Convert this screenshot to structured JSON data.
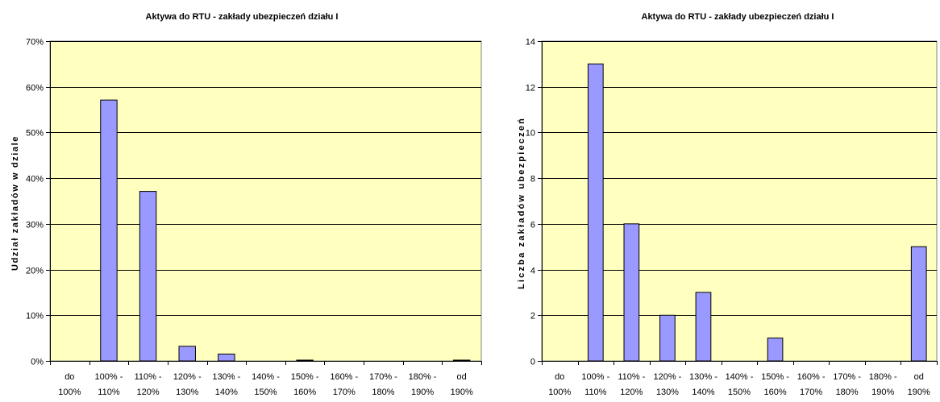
{
  "chart_data": [
    {
      "type": "bar",
      "title": "Aktywa do RTU - zakłady ubezpieczeń działu I",
      "xlabel": "",
      "ylabel": "Udział zakładów w dziale",
      "categories": [
        [
          "do",
          "100%"
        ],
        [
          "100% -",
          "110%"
        ],
        [
          "110% -",
          "120%"
        ],
        [
          "120% -",
          "130%"
        ],
        [
          "130% -",
          "140%"
        ],
        [
          "140% -",
          "150%"
        ],
        [
          "150% -",
          "160%"
        ],
        [
          "160% -",
          "170%"
        ],
        [
          "170% -",
          "180%"
        ],
        [
          "180% -",
          "190%"
        ],
        [
          "od",
          "190%"
        ]
      ],
      "values": [
        0,
        57.1,
        37.1,
        3.2,
        1.5,
        0,
        0.1,
        0,
        0,
        0,
        0.1
      ],
      "ylim": [
        0,
        70
      ],
      "yticks": [
        0,
        10,
        20,
        30,
        40,
        50,
        60,
        70
      ],
      "ytick_labels": [
        "0%",
        "10%",
        "20%",
        "30%",
        "40%",
        "50%",
        "60%",
        "70%"
      ],
      "grid": true,
      "plot_bg": "#ffffc0",
      "bar_color": "#9999ff"
    },
    {
      "type": "bar",
      "title": "Aktywa do RTU - zakłady ubezpieczeń działu I",
      "xlabel": "",
      "ylabel": "Liczba zakładów ubezpieczeń",
      "categories": [
        [
          "do",
          "100%"
        ],
        [
          "100% -",
          "110%"
        ],
        [
          "110% -",
          "120%"
        ],
        [
          "120% -",
          "130%"
        ],
        [
          "130% -",
          "140%"
        ],
        [
          "140% -",
          "150%"
        ],
        [
          "150% -",
          "160%"
        ],
        [
          "160% -",
          "170%"
        ],
        [
          "170% -",
          "180%"
        ],
        [
          "180% -",
          "190%"
        ],
        [
          "od",
          "190%"
        ]
      ],
      "values": [
        0,
        13,
        6,
        2,
        3,
        0,
        1,
        0,
        0,
        0,
        5
      ],
      "ylim": [
        0,
        14
      ],
      "yticks": [
        0,
        2,
        4,
        6,
        8,
        10,
        12,
        14
      ],
      "ytick_labels": [
        "0",
        "2",
        "4",
        "6",
        "8",
        "10",
        "12",
        "14"
      ],
      "grid": true,
      "plot_bg": "#ffffc0",
      "bar_color": "#9999ff"
    }
  ]
}
